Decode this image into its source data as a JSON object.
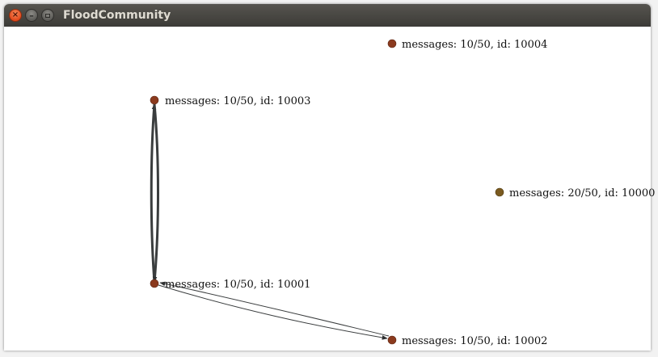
{
  "window": {
    "title": "FloodCommunity",
    "controls": [
      "close",
      "minimize",
      "maximize"
    ]
  },
  "graph": {
    "node_colors": {
      "default": "#8b3a1e",
      "highlight": "#7a5a1f"
    },
    "edge_color": "#3a3d3e",
    "nodes": [
      {
        "id": "10000",
        "label": "messages: 20/50, id: 10000",
        "color": "#7a5a1f"
      },
      {
        "id": "10001",
        "label": "messages: 10/50, id: 10001",
        "color": "#8b3a1e"
      },
      {
        "id": "10002",
        "label": "messages: 10/50, id: 10002",
        "color": "#8b3a1e"
      },
      {
        "id": "10003",
        "label": "messages: 10/50, id: 10003",
        "color": "#8b3a1e"
      },
      {
        "id": "10004",
        "label": "messages: 10/50, id: 10004",
        "color": "#8b3a1e"
      }
    ],
    "edges": [
      {
        "from": "10001",
        "to": "10003"
      },
      {
        "from": "10003",
        "to": "10001"
      },
      {
        "from": "10001",
        "to": "10002"
      },
      {
        "from": "10002",
        "to": "10001"
      }
    ]
  }
}
